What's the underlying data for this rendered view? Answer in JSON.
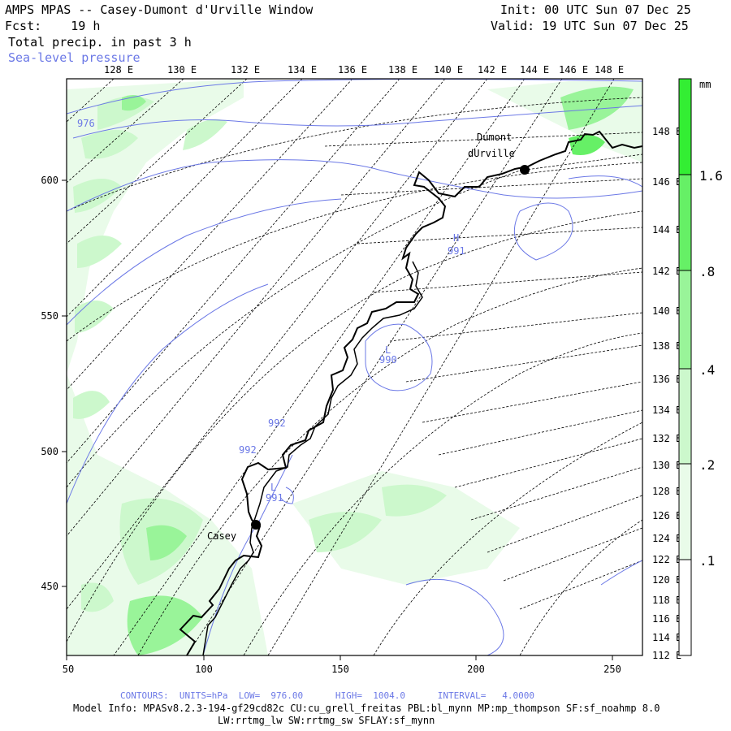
{
  "header": {
    "title": "AMPS MPAS -- Casey-Dumont d'Urville Window",
    "forecast": "Fcst:    19 h",
    "init": "Init: 00 UTC Sun 07 Dec 25",
    "valid": "Valid: 19 UTC Sun 07 Dec 25",
    "field": "Total precip. in past 3 h",
    "overlay": "Sea-level pressure"
  },
  "map": {
    "top_longitude_labels": [
      "128 E",
      "130 E",
      "132 E",
      "134 E",
      "136 E",
      "138 E",
      "140 E",
      "142 E",
      "144 E",
      "146 E",
      "148 E"
    ],
    "right_longitude_labels": [
      "148 E",
      "146 E",
      "144 E",
      "142 E",
      "140 E",
      "138 E",
      "136 E",
      "134 E",
      "132 E",
      "130 E",
      "128 E",
      "126 E",
      "124 E",
      "122 E",
      "120 E",
      "118 E",
      "116 E",
      "114 E",
      "112 E"
    ],
    "x_axis_labels": [
      "50",
      "100",
      "150",
      "200",
      "250"
    ],
    "y_axis_labels": [
      "600",
      "550",
      "500",
      "450"
    ],
    "stations": [
      {
        "name_line1": "Dumont",
        "name_line2": "dUrville"
      },
      {
        "name_line1": "Casey",
        "name_line2": ""
      }
    ],
    "pressure_labels": [
      "976",
      "991",
      "990",
      "992",
      "992",
      "991"
    ],
    "pressure_centers": [
      "H",
      "L",
      "L"
    ]
  },
  "colorbar": {
    "unit": "mm",
    "labels": [
      "1.6",
      ".8",
      ".4",
      ".2",
      ".1"
    ],
    "colors": [
      "#33ee33",
      "#66f066",
      "#99f499",
      "#ccf8cc",
      "#e9fbe9",
      "#ffffff"
    ]
  },
  "footer": {
    "contours": "CONTOURS:  UNITS=hPa  LOW=  976.00      HIGH=  1004.0      INTERVAL=   4.0000",
    "model_info": "Model Info: MPASv8.2.3-194-gf29cd82c CU:cu_grell_freitas PBL:bl_mynn MP:mp_thompson SF:sf_noahmp 8.0",
    "physics": "LW:rrtmg_lw SW:rrtmg_sw SFLAY:sf_mynn"
  }
}
